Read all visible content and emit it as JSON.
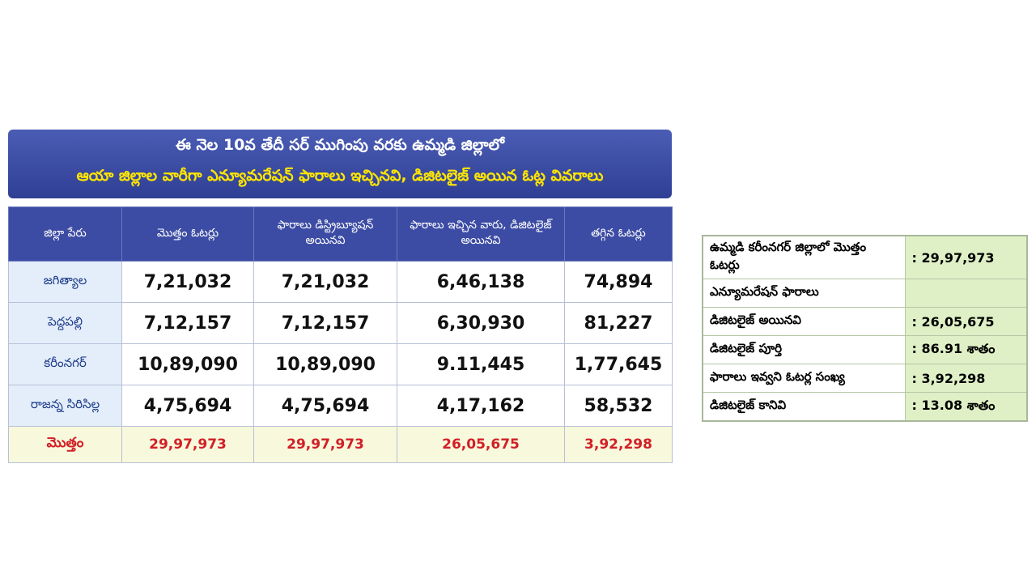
{
  "header": {
    "title": "ఈ నెల 10వ తేదీ సర్ ముగింపు వరకు ఉమ్మడి జిల్లాలో",
    "subtitle": "ఆయా జిల్లాల వారీగా ఎన్యూమరేషన్ ఫారాలు ఇచ్చినవి, డిజిటలైజ్ అయిన ఓట్ల వివరాలు"
  },
  "table": {
    "columns": [
      "జిల్లా పేరు",
      "మొత్తం ఓటర్లు",
      "ఫారాలు డిస్ట్రిబ్యూషన్ అయినవి",
      "ఫారాలు ఇచ్చిన వారు, డిజిటలైజ్ అయినవి",
      "తగ్గిన ఓటర్లు"
    ],
    "rows": [
      [
        "జగిత్యాల",
        "7,21,032",
        "7,21,032",
        "6,46,138",
        "74,894"
      ],
      [
        "పెద్దపల్లి",
        "7,12,157",
        "7,12,157",
        "6,30,930",
        "81,227"
      ],
      [
        "కరీంనగర్",
        "10,89,090",
        "10,89,090",
        "9.11,445",
        "1,77,645"
      ],
      [
        "రాజన్న సిరిసిల్ల",
        "4,75,694",
        "4,75,694",
        "4,17,162",
        "58,532"
      ]
    ],
    "total": [
      "మొత్తం",
      "29,97,973",
      "29,97,973",
      "26,05,675",
      "3,92,298"
    ]
  },
  "side_table": {
    "rows": [
      [
        "ఉమ్మడి కరీంనగర్ జిల్లాలో మొత్తం ఓటర్లు",
        ": 29,97,973"
      ],
      [
        "ఎన్యూమరేషన్ ఫారాలు"
      ],
      [
        "డిజిటలైజ్ అయినవి",
        ": 26,05,675"
      ],
      [
        "డిజిటలైజ్ పూర్తి",
        ": 86.91 శాతం"
      ],
      [
        "ఫారాలు ఇవ్వని ఓటర్ల సంఖ్య",
        ": 3,92,298"
      ],
      [
        "డిజిటలైజ్ కానివి",
        ": 13.08 శాతం"
      ]
    ]
  }
}
